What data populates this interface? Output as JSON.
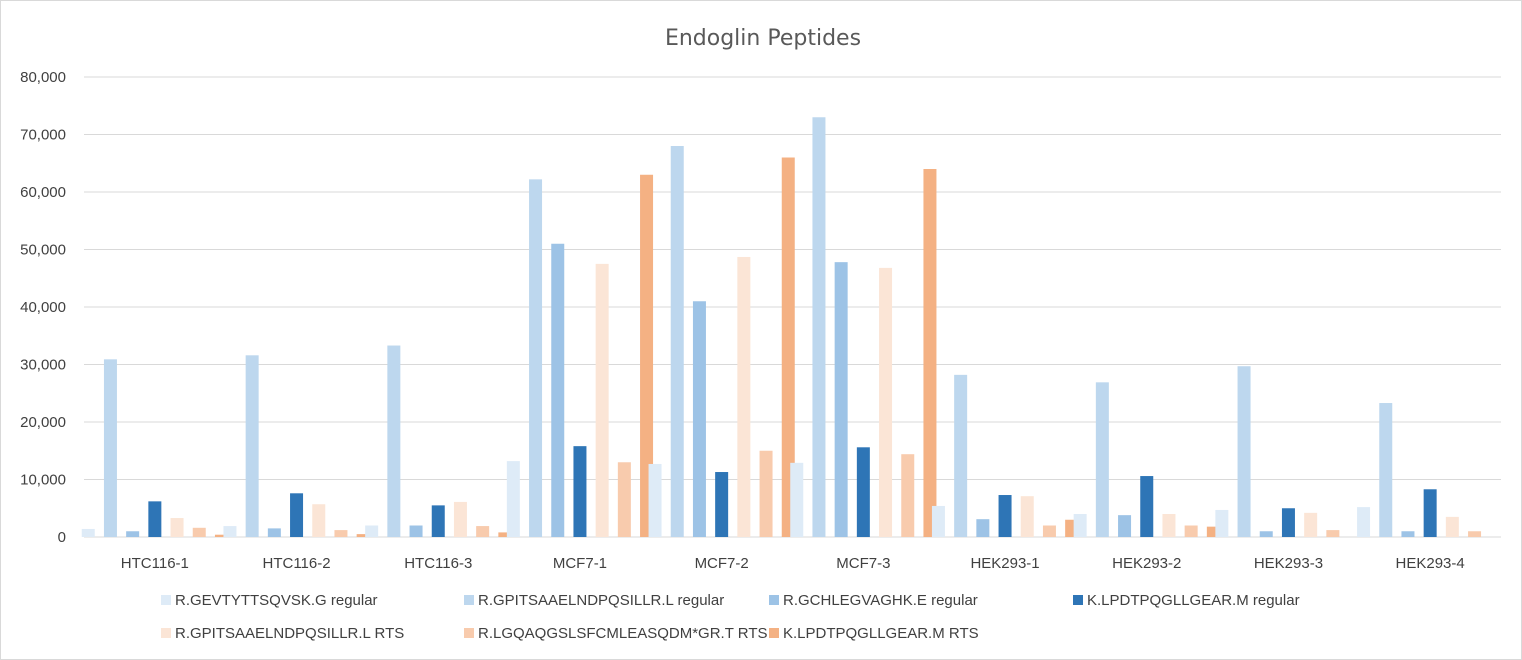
{
  "chart_data": {
    "type": "bar",
    "title": "Endoglin Peptides",
    "xlabel": "",
    "ylabel": "",
    "ylim": [
      0,
      80000
    ],
    "yticks": [
      "0",
      "10,000",
      "20,000",
      "30,000",
      "40,000",
      "50,000",
      "60,000",
      "70,000",
      "80,000"
    ],
    "grid": true,
    "legend_position": "bottom",
    "categories": [
      "HTC116-1",
      "HTC116-2",
      "HTC116-3",
      "MCF7-1",
      "MCF7-2",
      "MCF7-3",
      "HEK293-1",
      "HEK293-2",
      "HEK293-3",
      "HEK293-4"
    ],
    "series": [
      {
        "name": "R.GEVTYTTSQVSK.G regular",
        "color": "#deebf7",
        "values": [
          1400,
          1900,
          2000,
          13200,
          12700,
          12900,
          5400,
          4000,
          4700,
          5200
        ]
      },
      {
        "name": "R.GPITSAAELNDPQSILLR.L regular",
        "color": "#bdd7ee",
        "values": [
          30900,
          31600,
          33300,
          62200,
          68000,
          73000,
          28200,
          26900,
          29700,
          23300
        ]
      },
      {
        "name": "R.GCHLEGVAGHK.E regular",
        "color": "#9dc3e6",
        "values": [
          1000,
          1500,
          2000,
          51000,
          41000,
          47800,
          3100,
          3800,
          1000,
          1000
        ]
      },
      {
        "name": "K.LPDTPQGLLGEAR.M regular",
        "color": "#2e75b6",
        "values": [
          6200,
          7600,
          5500,
          15800,
          11300,
          15600,
          7300,
          10600,
          5000,
          8300
        ]
      },
      {
        "name": "R.GPITSAAELNDPQSILLR.L RTS",
        "color": "#fbe5d6",
        "values": [
          3300,
          5700,
          6100,
          47500,
          48700,
          46800,
          7100,
          4000,
          4200,
          3500
        ]
      },
      {
        "name": "R.LGQAQGSLSFCMLEASQDM*GR.T RTS",
        "color": "#f8cbad",
        "values": [
          1600,
          1200,
          1900,
          13000,
          15000,
          14400,
          2000,
          2000,
          1200,
          1000
        ]
      },
      {
        "name": "K.LPDTPQGLLGEAR.M RTS",
        "color": "#f4b183",
        "values": [
          400,
          500,
          800,
          63000,
          66000,
          64000,
          3000,
          1800,
          0,
          0
        ]
      }
    ]
  }
}
